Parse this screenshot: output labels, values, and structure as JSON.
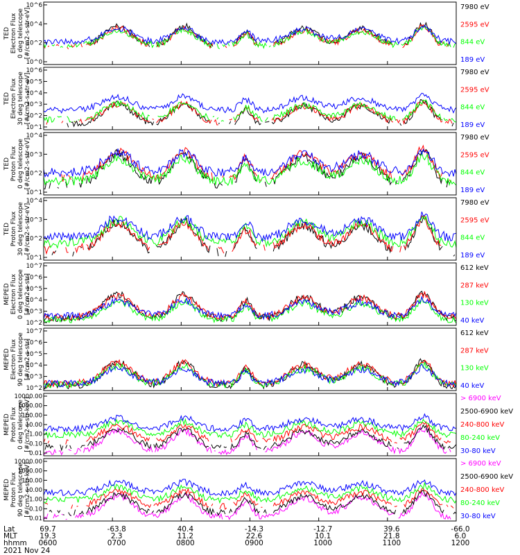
{
  "colors": {
    "blue": "#0000ff",
    "red": "#ff0000",
    "green": "#00ff00",
    "black": "#000000",
    "magenta": "#ff00ff"
  },
  "footer": {
    "date": "2021 Nov 24",
    "row_labels": [
      "Lat",
      "MLT",
      "hhmm"
    ],
    "columns": [
      {
        "lat": "69.7",
        "mlt": "19.3",
        "hhmm": "0600"
      },
      {
        "lat": "-63.8",
        "mlt": "2.3",
        "hhmm": "0700"
      },
      {
        "lat": "40.4",
        "mlt": "11.2",
        "hhmm": "0800"
      },
      {
        "lat": "-14.3",
        "mlt": "22.6",
        "hhmm": "0900"
      },
      {
        "lat": "-12.7",
        "mlt": "10.1",
        "hhmm": "1000"
      },
      {
        "lat": "39.6",
        "mlt": "21.8",
        "hhmm": "1100"
      },
      {
        "lat": "-66.0",
        "mlt": "6.0",
        "hhmm": "1200"
      }
    ]
  },
  "chart_data": [
    {
      "type": "line",
      "ylog": true,
      "ylabel": [
        "TED",
        "Electron Flux",
        "0 deg telescope",
        "[#/cm2-s-str-eV]"
      ],
      "yticks": [
        "10^0",
        "10^2",
        "10^4",
        "10^6"
      ],
      "ylim_exp": [
        0,
        6
      ],
      "xlim_hhmm": [
        "0600",
        "1200"
      ],
      "series": [
        {
          "name": "7980 eV",
          "color": "black",
          "level": 1.7,
          "mode": "drop",
          "drop": 0.8
        },
        {
          "name": "2595 eV",
          "color": "red",
          "level": 1.7,
          "mode": "drop",
          "drop": 0.6
        },
        {
          "name": "844 eV",
          "color": "green",
          "level": 1.8,
          "mode": "drop",
          "drop": 0.3
        },
        {
          "name": "189 eV",
          "color": "blue",
          "level": 2.2,
          "mode": "cont"
        }
      ]
    },
    {
      "type": "line",
      "ylog": true,
      "ylabel": [
        "TED",
        "Electron Flux",
        "30 deg telescope",
        "[#/cm2-s-str-eV]"
      ],
      "yticks": [
        "10^1",
        "10^2",
        "10^3",
        "10^4",
        "10^5",
        "10^6"
      ],
      "ylim_exp": [
        0.5,
        6.5
      ],
      "xlim_hhmm": [
        "0600",
        "1200"
      ],
      "series": [
        {
          "name": "7980 eV",
          "color": "black",
          "level": 1.0,
          "mode": "drop",
          "drop": 0.5
        },
        {
          "name": "2595 eV",
          "color": "red",
          "level": 1.2,
          "mode": "drop",
          "drop": 0.4
        },
        {
          "name": "844 eV",
          "color": "green",
          "level": 1.5,
          "mode": "drop",
          "drop": 0.3
        },
        {
          "name": "189 eV",
          "color": "blue",
          "level": 2.4,
          "mode": "cont"
        }
      ]
    },
    {
      "type": "line",
      "ylog": true,
      "ylabel": [
        "TED",
        "Proton Flux",
        "0 deg telescope",
        "[#/cm2-s-str-eV]"
      ],
      "yticks": [
        "10^1",
        "10^2",
        "10^3",
        "10^4"
      ],
      "ylim_exp": [
        0.5,
        4.6
      ],
      "xlim_hhmm": [
        "0600",
        "1200"
      ],
      "series": [
        {
          "name": "7980 eV",
          "color": "black",
          "level": 1.2,
          "mode": "drop",
          "drop": 0.5
        },
        {
          "name": "2595 eV",
          "color": "red",
          "level": 1.6,
          "mode": "drop",
          "drop": 0.4
        },
        {
          "name": "844 eV",
          "color": "green",
          "level": 1.4,
          "mode": "cont"
        },
        {
          "name": "189 eV",
          "color": "blue",
          "level": 2.0,
          "mode": "cont"
        }
      ]
    },
    {
      "type": "line",
      "ylog": true,
      "ylabel": [
        "TED",
        "Proton Flux",
        "30 deg telescope",
        "[#/cm2-s-str-eV]"
      ],
      "yticks": [
        "10^1",
        "10^2",
        "10^3",
        "10^4"
      ],
      "ylim_exp": [
        0.5,
        4.6
      ],
      "xlim_hhmm": [
        "0600",
        "1200"
      ],
      "series": [
        {
          "name": "7980 eV",
          "color": "black",
          "level": 1.0,
          "mode": "drop",
          "drop": 0.6
        },
        {
          "name": "2595 eV",
          "color": "red",
          "level": 1.2,
          "mode": "drop",
          "drop": 0.5
        },
        {
          "name": "844 eV",
          "color": "green",
          "level": 1.6,
          "mode": "cont"
        },
        {
          "name": "189 eV",
          "color": "blue",
          "level": 2.0,
          "mode": "cont"
        }
      ]
    },
    {
      "type": "line",
      "ylog": true,
      "ylabel": [
        "MEPED",
        "Electron Flux",
        "0 deg telescope",
        "[#/cm2-s-str]"
      ],
      "yticks": [
        "10^2",
        "10^3",
        "10^4",
        "10^5",
        "10^6",
        "10^7"
      ],
      "ylim_exp": [
        1.7,
        7
      ],
      "xlim_hhmm": [
        "0600",
        "1200"
      ],
      "series": [
        {
          "name": "612 keV",
          "color": "black",
          "level": 2.3,
          "mode": "cont"
        },
        {
          "name": "287 keV",
          "color": "red",
          "level": 2.4,
          "mode": "cont"
        },
        {
          "name": "130 keV",
          "color": "green",
          "level": 2.2,
          "mode": "cont"
        },
        {
          "name": "40 keV",
          "color": "blue",
          "level": 2.5,
          "mode": "cont"
        }
      ]
    },
    {
      "type": "line",
      "ylog": true,
      "ylabel": [
        "MEPED",
        "Electron Flux",
        "90 deg telescope",
        "[#/cm2-s-str]"
      ],
      "yticks": [
        "10^2",
        "10^3",
        "10^4",
        "10^5",
        "10^6",
        "10^7"
      ],
      "ylim_exp": [
        1.7,
        7
      ],
      "xlim_hhmm": [
        "0600",
        "1200"
      ],
      "series": [
        {
          "name": "612 keV",
          "color": "black",
          "level": 2.1,
          "mode": "cont"
        },
        {
          "name": "287 keV",
          "color": "red",
          "level": 2.3,
          "mode": "cont"
        },
        {
          "name": "130 keV",
          "color": "green",
          "level": 2.2,
          "mode": "cont"
        },
        {
          "name": "40 keV",
          "color": "blue",
          "level": 2.3,
          "mode": "cont"
        }
      ]
    },
    {
      "type": "line",
      "ylog": true,
      "ylabel": [
        "MEPED",
        "Proton Flux",
        "0 deg telescope",
        "[#/cm2-s-str-keV]"
      ],
      "yticks": [
        "0.01",
        "0.10",
        "1.00",
        "10.00",
        "100.00",
        "1000.00",
        "10000.00"
      ],
      "ylim_exp": [
        -2,
        4
      ],
      "xlim_hhmm": [
        "0600",
        "1200"
      ],
      "series": [
        {
          "name": "> 6900 keV",
          "color": "magenta",
          "level": -1.6,
          "mode": "drop",
          "drop": 0.2
        },
        {
          "name": "2500-6900 keV",
          "color": "black",
          "level": -1.2,
          "mode": "drop",
          "drop": 0.3
        },
        {
          "name": "240-800 keV",
          "color": "red",
          "level": -0.6,
          "mode": "drop",
          "drop": 0.4
        },
        {
          "name": "80-240 keV",
          "color": "green",
          "level": 0.0,
          "mode": "cont"
        },
        {
          "name": "30-80 keV",
          "color": "blue",
          "level": 0.6,
          "mode": "cont"
        }
      ]
    },
    {
      "type": "line",
      "ylog": true,
      "ylabel": [
        "MEPED",
        "Proton Flux",
        "90 deg telescope",
        "[#/cm2-s-str-keV]"
      ],
      "yticks": [
        "0.01",
        "0.10",
        "1.00",
        "10.00",
        "100.00",
        "1000.00",
        "10000.00"
      ],
      "ylim_exp": [
        -2,
        4
      ],
      "xlim_hhmm": [
        "0600",
        "1200"
      ],
      "series": [
        {
          "name": "> 6900 keV",
          "color": "magenta",
          "level": -1.6,
          "mode": "drop",
          "drop": 0.2
        },
        {
          "name": "2500-6900 keV",
          "color": "black",
          "level": -1.2,
          "mode": "drop",
          "drop": 0.3
        },
        {
          "name": "240-800 keV",
          "color": "red",
          "level": -0.6,
          "mode": "drop",
          "drop": 0.4
        },
        {
          "name": "80-240 keV",
          "color": "green",
          "level": 0.0,
          "mode": "cont"
        },
        {
          "name": "30-80 keV",
          "color": "blue",
          "level": 0.7,
          "mode": "cont"
        }
      ]
    }
  ],
  "events": [
    {
      "x": 0.18,
      "amp": 2.0,
      "w": 0.05
    },
    {
      "x": 0.34,
      "amp": 2.0,
      "w": 0.04
    },
    {
      "x": 0.49,
      "amp": 1.5,
      "w": 0.02
    },
    {
      "x": 0.63,
      "amp": 1.8,
      "w": 0.05
    },
    {
      "x": 0.77,
      "amp": 1.8,
      "w": 0.05
    },
    {
      "x": 0.92,
      "amp": 2.2,
      "w": 0.03
    }
  ]
}
